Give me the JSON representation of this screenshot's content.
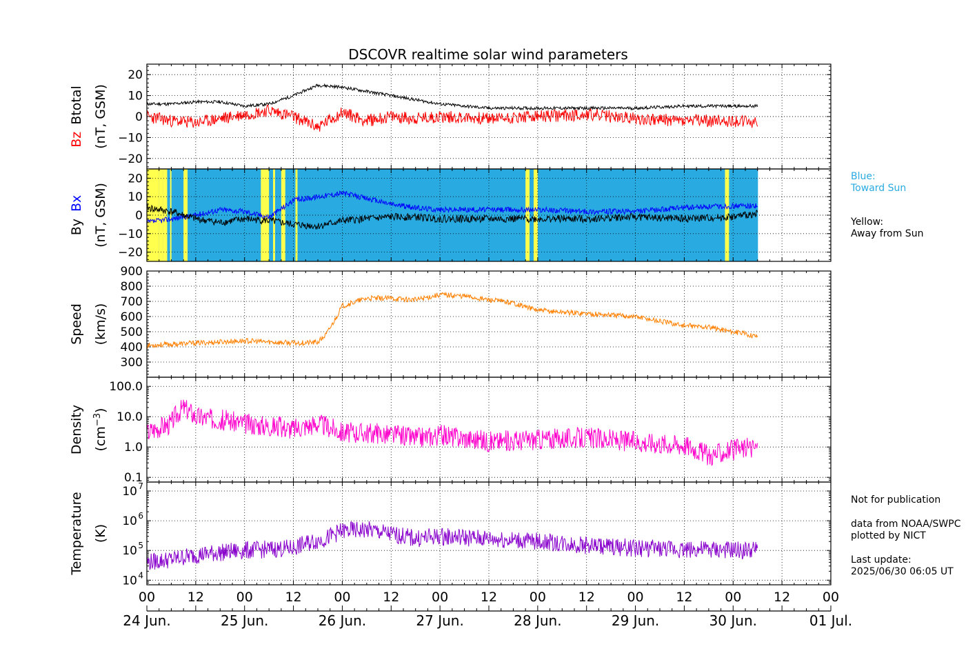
{
  "title": "DSCOVR realtime solar wind parameters",
  "x_axis": {
    "start": "2025-06-24T00:00Z",
    "end": "2025-07-01T00:00Z",
    "hour_ticks": [
      "00",
      "12",
      "00",
      "12",
      "00",
      "12",
      "00",
      "12",
      "00",
      "12",
      "00",
      "12",
      "00",
      "12",
      "00"
    ],
    "date_labels": [
      "24 Jun.",
      "25 Jun.",
      "26 Jun.",
      "27 Jun.",
      "28 Jun.",
      "29 Jun.",
      "30 Jun.",
      "01 Jul."
    ],
    "data_end": "2025-06-30T06:05Z"
  },
  "panels": [
    {
      "id": "mag-bz",
      "ylabel_parts": [
        "Bz",
        "Btotal"
      ],
      "ylabel_colors": [
        "#ff0000",
        "#000000"
      ],
      "ylabel2": "(nT, GSM)",
      "ylim": [
        -25,
        25
      ],
      "ticks": [
        "20",
        "10",
        "0",
        "−10",
        "−20"
      ]
    },
    {
      "id": "mag-by",
      "ylabel_parts": [
        "By",
        "Bx"
      ],
      "ylabel_colors": [
        "#000000",
        "#0000ff"
      ],
      "ylabel2": "(nT, GSM)",
      "ylim": [
        -25,
        25
      ],
      "ticks": [
        "20",
        "10",
        "0",
        "−10",
        "−20"
      ]
    },
    {
      "id": "speed",
      "ylabel": "Speed",
      "ylabel2": "(km/s)",
      "ylim": [
        200,
        900
      ],
      "ticks": [
        "900",
        "800",
        "700",
        "600",
        "500",
        "400",
        "300"
      ]
    },
    {
      "id": "density",
      "ylabel": "Density",
      "ylabel2": "(cm",
      "ylabel2_sup": "−3",
      "ylabel2_end": ")",
      "scale": "log",
      "ylim": [
        0.07,
        200
      ],
      "ticks": [
        "100.0",
        "10.0",
        "1.0",
        "0.1"
      ]
    },
    {
      "id": "temperature",
      "ylabel": "Temperature",
      "ylabel2": "(K)",
      "scale": "log",
      "ylim": [
        7000,
        20000000
      ],
      "ticks": [
        "10",
        "10",
        "10",
        "10"
      ],
      "tick_exp": [
        "7",
        "6",
        "5",
        "4"
      ]
    }
  ],
  "sector_legend": {
    "blue_title": "Blue:",
    "blue_text": "Toward Sun",
    "yellow_title": "Yellow:",
    "yellow_text": "Away from Sun",
    "blue_color": "#29abe2",
    "yellow_color": "#ffff4d"
  },
  "footer_notes": {
    "note1": "Not for publication",
    "note2": "data from NOAA/SWPC",
    "note3": "plotted by NICT",
    "note4": "Last update:",
    "note5": "2025/06/30 06:05 UT"
  },
  "chart_data": {
    "type": "line",
    "x_unit": "hours since 2025-06-24 00:00 UT",
    "series": [
      {
        "name": "Btotal",
        "color": "#000000",
        "unit": "nT",
        "x": [
          0,
          6,
          12,
          18,
          24,
          30,
          36,
          42,
          48,
          54,
          60,
          66,
          72,
          84,
          96,
          108,
          120,
          132,
          144,
          150
        ],
        "values": [
          6,
          6,
          7,
          7,
          5,
          6,
          10,
          15,
          14,
          12,
          10,
          8,
          6,
          4,
          4,
          4,
          4,
          5,
          5,
          5
        ]
      },
      {
        "name": "Bz",
        "color": "#ff0000",
        "unit": "nT",
        "x": [
          0,
          6,
          12,
          18,
          24,
          30,
          36,
          42,
          48,
          54,
          60,
          66,
          72,
          84,
          96,
          108,
          120,
          132,
          144,
          150
        ],
        "values": [
          0,
          -2,
          -3,
          -1,
          1,
          3,
          0,
          -5,
          2,
          -2,
          0,
          -1,
          0,
          -1,
          0,
          1,
          -1,
          -2,
          -2,
          -3
        ]
      },
      {
        "name": "Bx",
        "color": "#0000ff",
        "unit": "nT",
        "x": [
          0,
          6,
          12,
          18,
          24,
          30,
          36,
          42,
          48,
          54,
          60,
          66,
          72,
          84,
          96,
          108,
          120,
          132,
          144,
          150
        ],
        "values": [
          -4,
          -2,
          0,
          3,
          2,
          -1,
          8,
          10,
          12,
          9,
          6,
          4,
          3,
          3,
          3,
          2,
          2,
          4,
          5,
          5
        ]
      },
      {
        "name": "By",
        "color": "#000000",
        "unit": "nT",
        "x": [
          0,
          6,
          12,
          18,
          24,
          30,
          36,
          42,
          48,
          54,
          60,
          66,
          72,
          84,
          96,
          108,
          120,
          132,
          144,
          150
        ],
        "values": [
          4,
          2,
          -2,
          -4,
          -2,
          -3,
          -5,
          -6,
          -3,
          -2,
          -1,
          -1,
          -2,
          -2,
          -2,
          -2,
          -1,
          -2,
          -1,
          1
        ]
      },
      {
        "name": "Speed",
        "color": "#ff8000",
        "unit": "km/s",
        "x": [
          0,
          12,
          24,
          36,
          42,
          44,
          46,
          48,
          54,
          60,
          66,
          72,
          78,
          84,
          90,
          96,
          108,
          120,
          132,
          138,
          144,
          150
        ],
        "values": [
          410,
          425,
          440,
          425,
          430,
          480,
          570,
          670,
          720,
          720,
          710,
          745,
          735,
          710,
          690,
          640,
          620,
          600,
          540,
          530,
          500,
          470
        ]
      },
      {
        "name": "Density",
        "color": "#ff00cc",
        "unit": "cm^-3",
        "x": [
          0,
          6,
          9,
          12,
          18,
          24,
          30,
          36,
          42,
          48,
          54,
          60,
          66,
          72,
          84,
          96,
          108,
          120,
          132,
          138,
          144,
          150
        ],
        "values": [
          3,
          6,
          20,
          10,
          8,
          6,
          5,
          4,
          6,
          3,
          3,
          2.5,
          2,
          2.5,
          1.5,
          1.8,
          2,
          1.5,
          1.2,
          0.5,
          0.8,
          1
        ]
      },
      {
        "name": "Temperature",
        "color": "#8800cc",
        "unit": "K",
        "x": [
          0,
          6,
          12,
          24,
          36,
          44,
          48,
          54,
          60,
          66,
          72,
          84,
          96,
          108,
          120,
          132,
          144,
          150
        ],
        "values": [
          40000,
          50000,
          70000,
          100000,
          120000,
          250000,
          450000,
          500000,
          350000,
          250000,
          300000,
          250000,
          200000,
          150000,
          120000,
          110000,
          100000,
          100000
        ]
      }
    ],
    "sectors": {
      "yellow": [
        [
          0,
          3
        ],
        [
          3,
          4
        ],
        [
          4,
          5
        ],
        [
          5.7,
          6
        ],
        [
          9,
          10
        ],
        [
          28,
          30
        ],
        [
          31,
          31.5
        ],
        [
          33,
          34
        ],
        [
          36.5,
          37
        ],
        [
          93,
          94
        ],
        [
          95,
          96
        ],
        [
          142,
          143
        ]
      ]
    }
  }
}
